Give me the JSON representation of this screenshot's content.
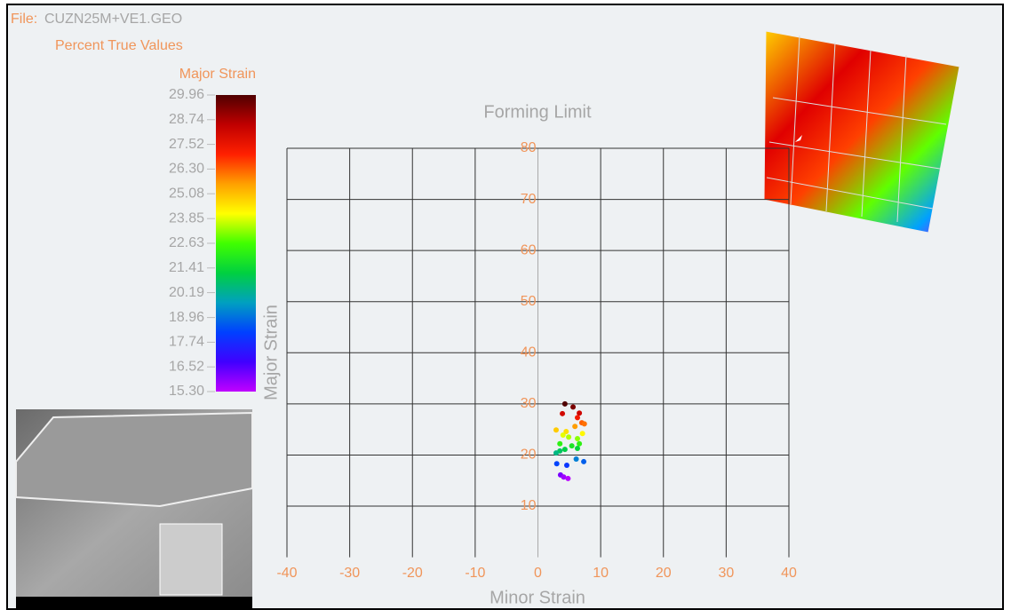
{
  "header": {
    "file_label": "File:",
    "file_name": "CUZN25M+VE1.GEO",
    "mode": "Percent True Values"
  },
  "colorbar": {
    "title": "Major Strain",
    "colors": [
      "#c000ff",
      "#4000ff",
      "#0040ff",
      "#00a0c0",
      "#00d040",
      "#40ff00",
      "#ffff00",
      "#ffa000",
      "#ff2000",
      "#c00000",
      "#500000"
    ],
    "ticks": [
      29.96,
      28.74,
      27.52,
      {
        "value": 26.3,
        "label": "26.30"
      },
      25.08,
      23.85,
      22.63,
      21.41,
      20.19,
      18.96,
      17.74,
      16.52,
      {
        "value": 15.3,
        "label": "15.30"
      }
    ]
  },
  "chart_data": {
    "type": "scatter",
    "title": "Forming Limit",
    "x_label": "Minor Strain",
    "y_label": "Major Strain",
    "xlim": [
      -40,
      40
    ],
    "ylim": [
      0,
      80
    ],
    "xticks": [
      -40,
      -30,
      -20,
      -10,
      0,
      10,
      20,
      30,
      40
    ],
    "yticks": [
      10,
      20,
      30,
      40,
      50,
      60,
      70,
      80
    ],
    "grid": true,
    "x": [
      4.3,
      5.6,
      3.9,
      6.6,
      6.3,
      7.0,
      7.4,
      5.9,
      2.9,
      4.5,
      4.0,
      7.1,
      4.9,
      6.3,
      3.5,
      6.6,
      5.4,
      4.3,
      3.5,
      2.9,
      6.3,
      6.1,
      7.3,
      3.0,
      4.6,
      3.6,
      4.1,
      4.8
    ],
    "values": [
      30.0,
      29.4,
      28.1,
      28.2,
      27.3,
      26.3,
      26.1,
      25.6,
      24.9,
      24.6,
      23.9,
      24.2,
      23.5,
      23.2,
      22.2,
      22.2,
      21.8,
      21.1,
      20.8,
      20.4,
      21.3,
      19.2,
      18.7,
      18.3,
      18.0,
      16.1,
      15.7,
      15.4
    ]
  }
}
